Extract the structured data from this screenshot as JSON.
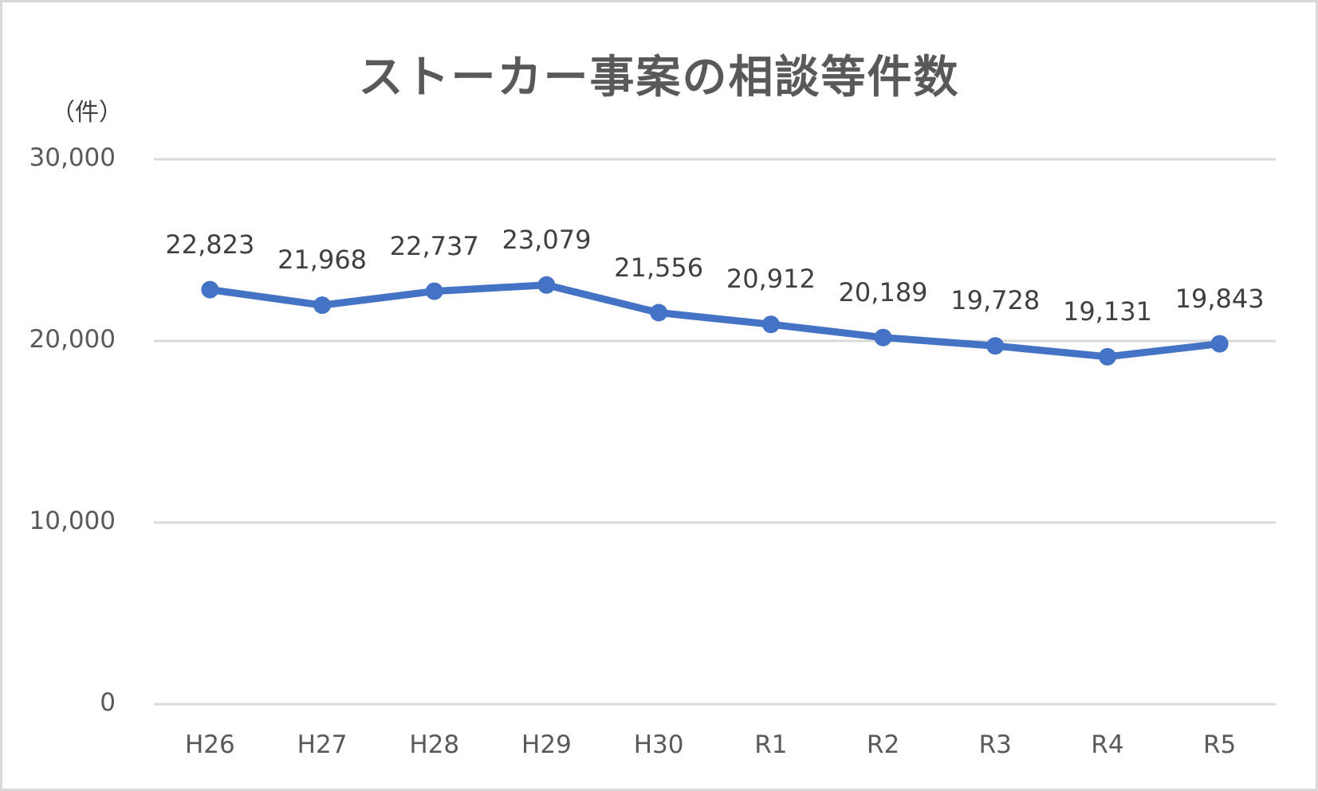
{
  "chart_data": {
    "type": "line",
    "title": "ストーカー事案の相談等件数",
    "ylabel": "（件）",
    "xlabel": "",
    "categories": [
      "H26",
      "H27",
      "H28",
      "H29",
      "H30",
      "R1",
      "R2",
      "R3",
      "R4",
      "R5"
    ],
    "series": [
      {
        "name": "相談等件数",
        "color": "#4472c4",
        "values": [
          22823,
          21968,
          22737,
          23079,
          21556,
          20912,
          20189,
          19728,
          19131,
          19843
        ],
        "labels": [
          "22,823",
          "21,968",
          "22,737",
          "23,079",
          "21,556",
          "20,912",
          "20,189",
          "19,728",
          "19,131",
          "19,843"
        ]
      }
    ],
    "ylim": [
      0,
      30000
    ],
    "yticks": [
      0,
      10000,
      20000,
      30000
    ],
    "ytick_labels": [
      "0",
      "10,000",
      "20,000",
      "30,000"
    ],
    "grid": true,
    "legend": "none",
    "gridline_color": "#d9d9d9"
  }
}
